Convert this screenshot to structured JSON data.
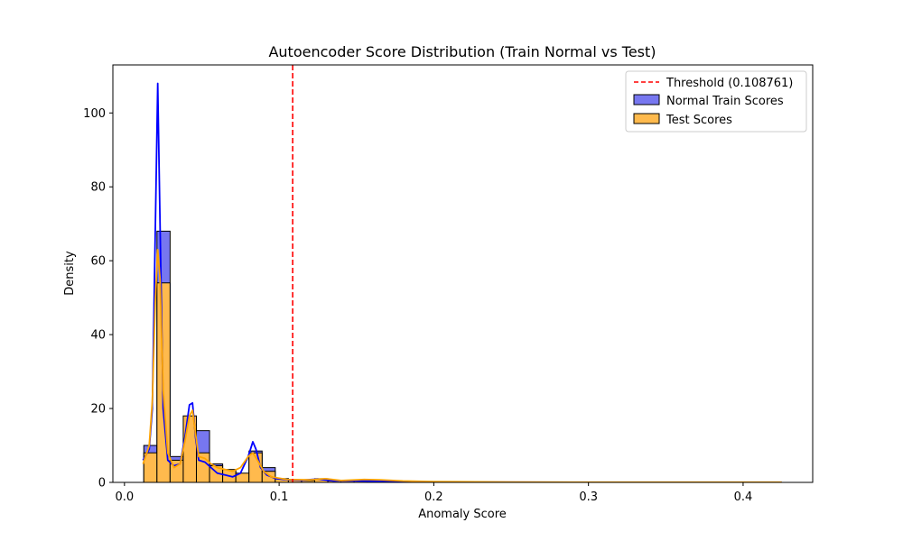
{
  "chart_data": {
    "type": "histogram",
    "title": "Autoencoder Score Distribution (Train Normal vs Test)",
    "xlabel": "Anomaly Score",
    "ylabel": "Density",
    "xlim": [
      -0.0075,
      0.445
    ],
    "ylim": [
      0,
      113
    ],
    "xticks": [
      0.0,
      0.1,
      0.2,
      0.3,
      0.4
    ],
    "xtick_labels": [
      "0.0",
      "0.1",
      "0.2",
      "0.3",
      "0.4"
    ],
    "yticks": [
      0,
      20,
      40,
      60,
      80,
      100
    ],
    "ytick_labels": [
      "0",
      "20",
      "40",
      "60",
      "80",
      "100"
    ],
    "grid": false,
    "legend_position": "top-right",
    "threshold": {
      "value": 0.108761,
      "label": "Threshold (0.108761)",
      "color": "#ff0000"
    },
    "bin_width": 0.0085,
    "series": [
      {
        "name": "Normal Train Scores",
        "fill": "#7777f0",
        "line": "#0000ff",
        "bins": [
          [
            0.0125,
            10
          ],
          [
            0.021,
            68
          ],
          [
            0.0295,
            7
          ],
          [
            0.038,
            10
          ],
          [
            0.0465,
            14
          ],
          [
            0.055,
            5
          ],
          [
            0.0635,
            3
          ],
          [
            0.072,
            2
          ],
          [
            0.0805,
            8.5
          ],
          [
            0.089,
            4
          ],
          [
            0.0975,
            1
          ],
          [
            0.106,
            0.6
          ],
          [
            0.1145,
            0.5
          ],
          [
            0.123,
            1
          ],
          [
            0.1315,
            0.3
          ],
          [
            0.14,
            0.2
          ],
          [
            0.1485,
            0.2
          ],
          [
            0.157,
            0.2
          ],
          [
            0.1655,
            0.1
          ],
          [
            0.174,
            0.1
          ]
        ],
        "kde": [
          [
            0.012,
            6
          ],
          [
            0.016,
            9
          ],
          [
            0.018,
            20
          ],
          [
            0.02,
            70
          ],
          [
            0.0215,
            108
          ],
          [
            0.023,
            70
          ],
          [
            0.025,
            20
          ],
          [
            0.028,
            6
          ],
          [
            0.032,
            4.5
          ],
          [
            0.036,
            5
          ],
          [
            0.039,
            12
          ],
          [
            0.042,
            21
          ],
          [
            0.044,
            21.5
          ],
          [
            0.046,
            12
          ],
          [
            0.048,
            6
          ],
          [
            0.052,
            5.5
          ],
          [
            0.056,
            4
          ],
          [
            0.06,
            2.5
          ],
          [
            0.065,
            2
          ],
          [
            0.07,
            1.5
          ],
          [
            0.075,
            2.5
          ],
          [
            0.08,
            7
          ],
          [
            0.083,
            11
          ],
          [
            0.085,
            9
          ],
          [
            0.088,
            4
          ],
          [
            0.092,
            2
          ],
          [
            0.098,
            1
          ],
          [
            0.105,
            0.7
          ],
          [
            0.115,
            0.6
          ],
          [
            0.125,
            0.9
          ],
          [
            0.135,
            0.4
          ],
          [
            0.15,
            0.4
          ],
          [
            0.165,
            0.3
          ],
          [
            0.18,
            0.2
          ],
          [
            0.2,
            0.1
          ],
          [
            0.25,
            0.05
          ],
          [
            0.3,
            0.03
          ],
          [
            0.35,
            0.02
          ],
          [
            0.4,
            0.02
          ],
          [
            0.425,
            0.02
          ]
        ]
      },
      {
        "name": "Test Scores",
        "fill": "#ffba4d",
        "line": "#ffa500",
        "bins": [
          [
            0.0125,
            8
          ],
          [
            0.021,
            54
          ],
          [
            0.0295,
            6
          ],
          [
            0.038,
            18
          ],
          [
            0.0465,
            8
          ],
          [
            0.055,
            4.5
          ],
          [
            0.0635,
            3.5
          ],
          [
            0.072,
            2.5
          ],
          [
            0.0805,
            8
          ],
          [
            0.089,
            3
          ],
          [
            0.0975,
            1
          ],
          [
            0.106,
            0.6
          ],
          [
            0.1145,
            0.5
          ],
          [
            0.123,
            0.8
          ],
          [
            0.1315,
            0.4
          ],
          [
            0.14,
            0.5
          ],
          [
            0.1485,
            0.5
          ],
          [
            0.157,
            0.6
          ],
          [
            0.1655,
            0.5
          ],
          [
            0.174,
            0.3
          ],
          [
            0.1825,
            0.2
          ],
          [
            0.2,
            0.1
          ],
          [
            0.25,
            0.05
          ],
          [
            0.3,
            0.05
          ],
          [
            0.35,
            0.05
          ],
          [
            0.4,
            0.05
          ]
        ],
        "kde": [
          [
            0.012,
            5
          ],
          [
            0.016,
            10
          ],
          [
            0.018,
            22
          ],
          [
            0.02,
            50
          ],
          [
            0.0215,
            63
          ],
          [
            0.023,
            55
          ],
          [
            0.025,
            25
          ],
          [
            0.028,
            8
          ],
          [
            0.032,
            4
          ],
          [
            0.036,
            5
          ],
          [
            0.039,
            11
          ],
          [
            0.042,
            18
          ],
          [
            0.044,
            19.5
          ],
          [
            0.046,
            13
          ],
          [
            0.048,
            7
          ],
          [
            0.052,
            6.5
          ],
          [
            0.056,
            5
          ],
          [
            0.06,
            4
          ],
          [
            0.065,
            3.5
          ],
          [
            0.07,
            3
          ],
          [
            0.075,
            4
          ],
          [
            0.08,
            7
          ],
          [
            0.083,
            8
          ],
          [
            0.086,
            6
          ],
          [
            0.09,
            3
          ],
          [
            0.095,
            1.5
          ],
          [
            0.105,
            0.8
          ],
          [
            0.12,
            0.7
          ],
          [
            0.13,
            1.0
          ],
          [
            0.14,
            0.5
          ],
          [
            0.155,
            0.8
          ],
          [
            0.165,
            0.7
          ],
          [
            0.18,
            0.4
          ],
          [
            0.2,
            0.2
          ],
          [
            0.25,
            0.1
          ],
          [
            0.3,
            0.05
          ],
          [
            0.35,
            0.05
          ],
          [
            0.4,
            0.05
          ],
          [
            0.425,
            0.05
          ]
        ]
      }
    ]
  }
}
